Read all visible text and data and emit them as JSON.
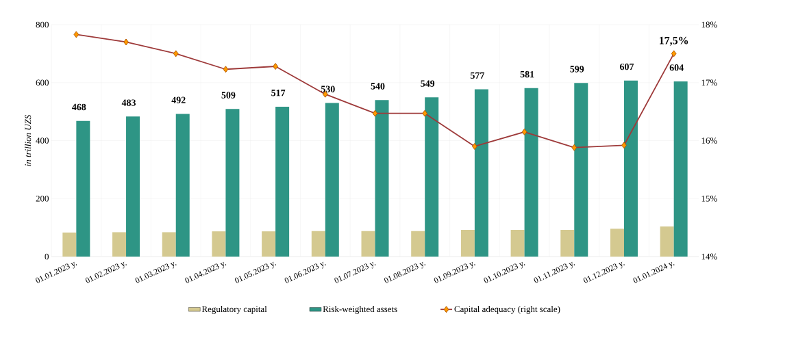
{
  "chart_data": {
    "type": "bar",
    "ylabel": "in trillion UZS",
    "categories": [
      "01.01.2023 y.",
      "01.02.2023 y.",
      "01.03.2023 y.",
      "01.04.2023 y.",
      "01.05.2023 y.",
      "01.06.2023 y.",
      "01.07.2023 y.",
      "01.08.2023 y.",
      "01.09.2023 y.",
      "01.10.2023 y.",
      "01.11.2023 y.",
      "01.12.2023 y.",
      "01.01.2024 y."
    ],
    "series": [
      {
        "name": "Regulatory capital",
        "color": "#d4c990",
        "values": [
          83,
          84,
          84,
          87,
          87,
          88,
          88,
          88,
          92,
          92,
          92,
          96,
          104
        ]
      },
      {
        "name": "Risk-weighted assets",
        "color": "#2e9585",
        "values": [
          468,
          483,
          492,
          509,
          517,
          530,
          540,
          549,
          577,
          581,
          599,
          607,
          604
        ],
        "value_labels": [
          "468",
          "483",
          "492",
          "509",
          "517",
          "530",
          "540",
          "549",
          "577",
          "581",
          "599",
          "607",
          "604"
        ]
      },
      {
        "name": "Capital adequacy (right scale)",
        "type": "line",
        "axis": "y2",
        "color": "#9e3a3a",
        "marker": "diamond",
        "values": [
          17.83,
          17.7,
          17.5,
          17.23,
          17.28,
          16.8,
          16.47,
          16.47,
          15.9,
          16.15,
          15.88,
          15.92,
          17.5
        ],
        "value_labels": [
          null,
          null,
          null,
          null,
          null,
          null,
          null,
          null,
          null,
          null,
          null,
          null,
          "17,5%"
        ]
      }
    ],
    "ylim": [
      0,
      800
    ],
    "yticks": [
      0,
      200,
      400,
      600,
      800
    ],
    "y2lim": [
      14,
      18
    ],
    "y2ticks": [
      {
        "value": 14,
        "label": "14%"
      },
      {
        "value": 15,
        "label": "15%"
      },
      {
        "value": 16,
        "label": "16%"
      },
      {
        "value": 17,
        "label": "17%"
      },
      {
        "value": 18,
        "label": "18%"
      }
    ],
    "grid": true,
    "legend": "bottom"
  }
}
